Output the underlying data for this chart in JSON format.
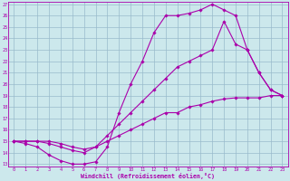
{
  "xlabel": "Windchill (Refroidissement éolien,°C)",
  "bg_color": "#cce8ec",
  "line_color": "#aa00aa",
  "grid_color": "#99bbcc",
  "ylim": [
    13,
    27
  ],
  "xlim": [
    -0.5,
    23.5
  ],
  "yticks": [
    13,
    14,
    15,
    16,
    17,
    18,
    19,
    20,
    21,
    22,
    23,
    24,
    25,
    26,
    27
  ],
  "xticks": [
    0,
    1,
    2,
    3,
    4,
    5,
    6,
    7,
    8,
    9,
    10,
    11,
    12,
    13,
    14,
    15,
    16,
    17,
    18,
    19,
    20,
    21,
    22,
    23
  ],
  "line1_x": [
    0,
    1,
    2,
    3,
    4,
    5,
    6,
    7,
    8,
    9,
    10,
    11,
    12,
    13,
    14,
    15,
    16,
    17,
    18,
    19,
    20,
    21,
    22,
    23
  ],
  "line1_y": [
    15,
    14.8,
    14.5,
    13.8,
    13.3,
    13.0,
    13.0,
    13.2,
    14.5,
    17.5,
    20.0,
    22.0,
    24.5,
    26.0,
    26.0,
    26.2,
    26.5,
    27.0,
    26.5,
    26.0,
    23.0,
    21.0,
    19.5,
    19.0
  ],
  "line2_x": [
    0,
    1,
    2,
    3,
    4,
    5,
    6,
    7,
    8,
    9,
    10,
    11,
    12,
    13,
    14,
    15,
    16,
    17,
    18,
    19,
    20,
    21,
    22,
    23
  ],
  "line2_y": [
    15,
    15.0,
    15.0,
    14.8,
    14.5,
    14.2,
    14.0,
    14.5,
    15.5,
    16.5,
    17.5,
    18.5,
    19.5,
    20.5,
    21.5,
    22.0,
    22.5,
    23.0,
    25.5,
    23.5,
    23.0,
    21.0,
    19.5,
    19.0
  ],
  "line3_x": [
    0,
    1,
    2,
    3,
    4,
    5,
    6,
    7,
    8,
    9,
    10,
    11,
    12,
    13,
    14,
    15,
    16,
    17,
    18,
    19,
    20,
    21,
    22,
    23
  ],
  "line3_y": [
    15,
    15.0,
    15.0,
    15.0,
    14.8,
    14.5,
    14.3,
    14.5,
    15.0,
    15.5,
    16.0,
    16.5,
    17.0,
    17.5,
    17.5,
    18.0,
    18.2,
    18.5,
    18.7,
    18.8,
    18.8,
    18.8,
    19.0,
    19.0
  ]
}
